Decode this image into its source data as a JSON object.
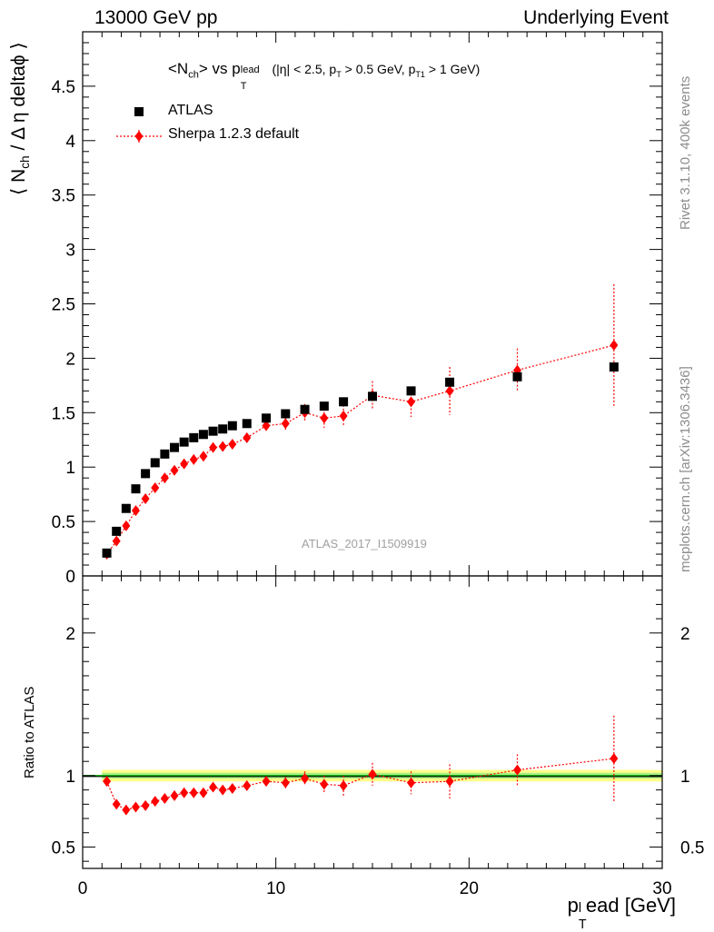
{
  "header": {
    "left": "13000 GeV pp",
    "right": "Underlying Event"
  },
  "side_labels": {
    "rivet": "Rivet 3.1.10,  400k events",
    "mcplots": "mcplots.cern.ch [arXiv:1306.3436]"
  },
  "main_plot": {
    "title_main": "<N",
    "title_sub_ch": "ch",
    "title_vs": "> vs p",
    "title_sub_T": "T",
    "title_sup_lead": "lead",
    "title_cuts_1": "(|η| < 2.5, p",
    "title_cuts_sub1": "T",
    "title_cuts_2": " > 0.5 GeV, p",
    "title_cuts_sub2": "T1",
    "title_cuts_3": " > 1 GeV)",
    "ylabel_pre": "⟨ N",
    "ylabel_sub": "ch",
    "ylabel_post": "/ Δ η deltaϕ ⟩",
    "analysis_label": "ATLAS_2017_I1509919",
    "legend": [
      {
        "label": "ATLAS"
      },
      {
        "label": "Sherpa 1.2.3 default"
      }
    ]
  },
  "ratio_plot": {
    "ylabel": "Ratio to ATLAS"
  },
  "x_axis": {
    "title_pre": "p",
    "title_sub": "T",
    "title_sup": "l",
    "title_post": "ead [GeV]"
  },
  "colors": {
    "data": "#000000",
    "mc": "#ff0000",
    "band_outer": "#ffff88",
    "band_inner": "#aaee88",
    "ratio_line": "#00aa00"
  },
  "chart_data": [
    {
      "type": "scatter",
      "panel": "main",
      "xlim": [
        0,
        30
      ],
      "ylim": [
        0,
        5
      ],
      "yticks": [
        0,
        0.5,
        1,
        1.5,
        2,
        2.5,
        3,
        3.5,
        4,
        4.5
      ],
      "ytick_labels": [
        "0",
        "0.5",
        "1",
        "1.5",
        "2",
        "2.5",
        "3",
        "3.5",
        "4",
        "4.5"
      ],
      "series": [
        {
          "name": "ATLAS",
          "x": [
            1.25,
            1.75,
            2.25,
            2.75,
            3.25,
            3.75,
            4.25,
            4.75,
            5.25,
            5.75,
            6.25,
            6.75,
            7.25,
            7.75,
            8.5,
            9.5,
            10.5,
            11.5,
            12.5,
            13.5,
            15,
            17,
            19,
            22.5,
            27.5
          ],
          "y": [
            0.21,
            0.41,
            0.62,
            0.8,
            0.94,
            1.04,
            1.12,
            1.18,
            1.23,
            1.27,
            1.3,
            1.33,
            1.35,
            1.38,
            1.4,
            1.45,
            1.49,
            1.53,
            1.56,
            1.6,
            1.65,
            1.7,
            1.78,
            1.83,
            1.92
          ]
        },
        {
          "name": "Sherpa 1.2.3 default",
          "x": [
            1.25,
            1.75,
            2.25,
            2.75,
            3.25,
            3.75,
            4.25,
            4.75,
            5.25,
            5.75,
            6.25,
            6.75,
            7.25,
            7.75,
            8.5,
            9.5,
            10.5,
            11.5,
            12.5,
            13.5,
            15,
            17,
            19,
            22.5,
            27.5
          ],
          "y": [
            0.2,
            0.32,
            0.46,
            0.6,
            0.71,
            0.81,
            0.9,
            0.97,
            1.03,
            1.07,
            1.1,
            1.18,
            1.19,
            1.21,
            1.27,
            1.38,
            1.4,
            1.5,
            1.45,
            1.47,
            1.66,
            1.6,
            1.7,
            1.89,
            2.12
          ],
          "err": [
            0.02,
            0.02,
            0.02,
            0.02,
            0.02,
            0.02,
            0.02,
            0.02,
            0.02,
            0.03,
            0.03,
            0.03,
            0.03,
            0.03,
            0.04,
            0.05,
            0.06,
            0.08,
            0.09,
            0.1,
            0.13,
            0.14,
            0.22,
            0.2,
            0.56
          ]
        }
      ]
    },
    {
      "type": "scatter",
      "panel": "ratio",
      "xlim": [
        0,
        30
      ],
      "ylim": [
        0.35,
        2.4
      ],
      "yticks": [
        0.5,
        1,
        2
      ],
      "ytick_labels": [
        "0.5",
        "1",
        "2"
      ],
      "xticks": [
        0,
        10,
        20,
        30
      ],
      "xtick_labels": [
        "0",
        "10",
        "20",
        "30"
      ],
      "series": [
        {
          "name": "Sherpa 1.2.3 default",
          "x": [
            1.25,
            1.75,
            2.25,
            2.75,
            3.25,
            3.75,
            4.25,
            4.75,
            5.25,
            5.75,
            6.25,
            6.75,
            7.25,
            7.75,
            8.5,
            9.5,
            10.5,
            11.5,
            12.5,
            13.5,
            15,
            17,
            19,
            22.5,
            27.5
          ],
          "y": [
            0.96,
            0.8,
            0.76,
            0.78,
            0.79,
            0.82,
            0.84,
            0.86,
            0.88,
            0.88,
            0.88,
            0.92,
            0.9,
            0.91,
            0.93,
            0.96,
            0.95,
            0.98,
            0.94,
            0.93,
            1.01,
            0.95,
            0.96,
            1.04,
            1.12
          ],
          "err": [
            0.02,
            0.02,
            0.02,
            0.02,
            0.02,
            0.02,
            0.02,
            0.02,
            0.02,
            0.02,
            0.02,
            0.02,
            0.02,
            0.02,
            0.02,
            0.03,
            0.04,
            0.05,
            0.06,
            0.07,
            0.08,
            0.08,
            0.12,
            0.11,
            0.3
          ]
        }
      ]
    }
  ]
}
